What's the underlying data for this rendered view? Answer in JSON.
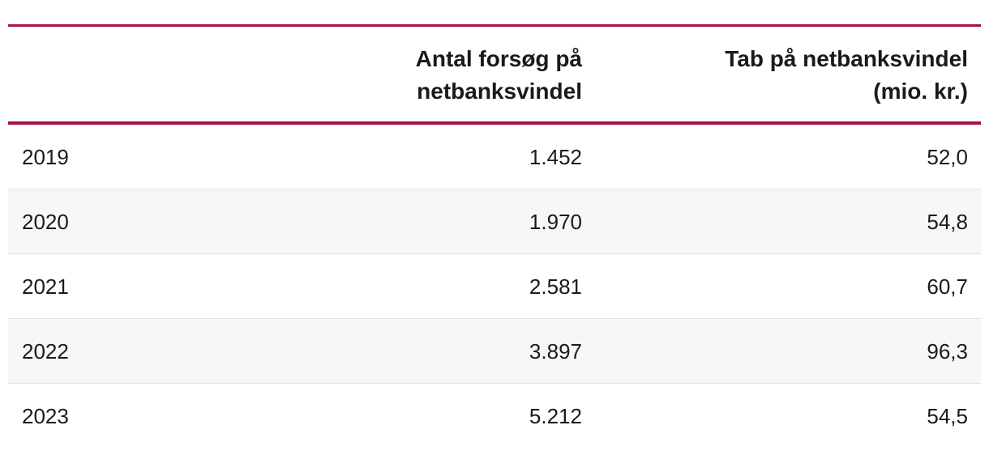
{
  "table": {
    "columns": [
      "",
      "Antal forsøg på netbanksvindel",
      "Tab på netbanksvindel (mio. kr.)"
    ],
    "rows": [
      [
        "2019",
        "1.452",
        "52,0"
      ],
      [
        "2020",
        "1.970",
        "54,8"
      ],
      [
        "2021",
        "2.581",
        "60,7"
      ],
      [
        "2022",
        "3.897",
        "96,3"
      ],
      [
        "2023",
        "5.212",
        "54,5"
      ]
    ]
  }
}
